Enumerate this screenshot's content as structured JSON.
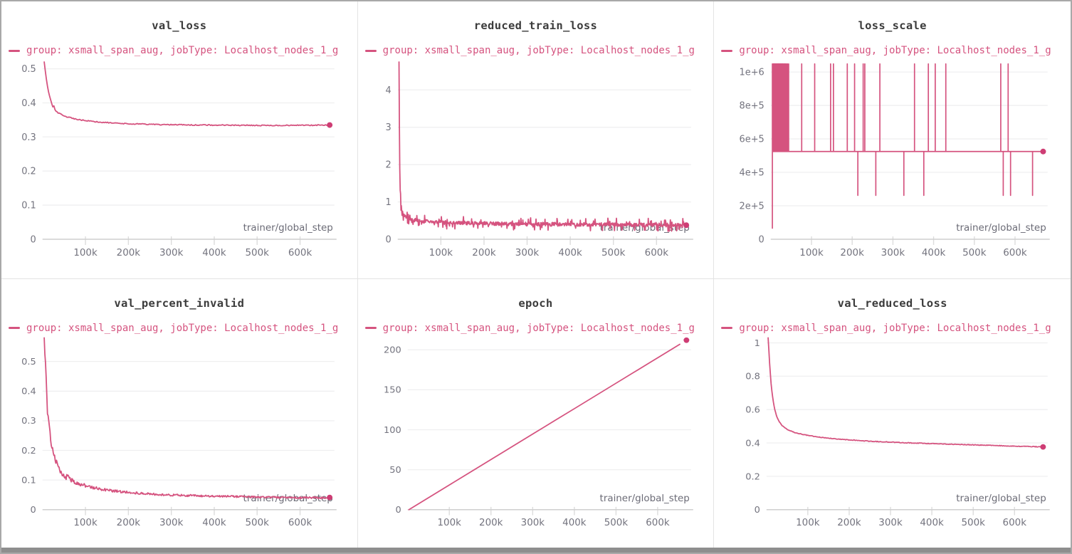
{
  "window": {
    "border_color": "#a9a9a9",
    "bottom_bar_color": "#8e8e8e",
    "panel_divider_color": "#e3e3e3",
    "background": "#ffffff"
  },
  "colors": {
    "accent": "#d5537f",
    "end_dot": "#ce3d74",
    "title_text": "#3b3b3b",
    "tick_text": "#73737e",
    "axis_line": "#cfcfcf",
    "tick_mark": "#dcdcdc",
    "grid_line": "#efeff0",
    "axis_label_text": "#6b6b76"
  },
  "legend": {
    "label": "group: xsmall_span_aug, jobType: Localhost_nodes_1_g"
  },
  "x_axis": {
    "label": "trainer/global_step",
    "range": [
      0,
      680000
    ],
    "ticks": [
      {
        "v": 100000,
        "label": "100k"
      },
      {
        "v": 200000,
        "label": "200k"
      },
      {
        "v": 300000,
        "label": "300k"
      },
      {
        "v": 400000,
        "label": "400k"
      },
      {
        "v": 500000,
        "label": "500k"
      },
      {
        "v": 600000,
        "label": "600k"
      }
    ]
  },
  "chart_data": [
    {
      "type": "line",
      "title": "val_loss",
      "ylabel": "",
      "xlabel": "trainer/global_step",
      "y_range": [
        0,
        0.52
      ],
      "y_ticks": [
        {
          "v": 0,
          "label": "0"
        },
        {
          "v": 0.1,
          "label": "0.1"
        },
        {
          "v": 0.2,
          "label": "0.2"
        },
        {
          "v": 0.3,
          "label": "0.3"
        },
        {
          "v": 0.4,
          "label": "0.4"
        },
        {
          "v": 0.5,
          "label": "0.5"
        }
      ],
      "noise": {
        "amp": 0.0015,
        "mode": "flat"
      },
      "anchors": [
        [
          4000,
          0.52
        ],
        [
          6000,
          0.5
        ],
        [
          9000,
          0.468
        ],
        [
          12000,
          0.445
        ],
        [
          15000,
          0.428
        ],
        [
          18000,
          0.413
        ],
        [
          21000,
          0.4
        ],
        [
          24000,
          0.388
        ],
        [
          26000,
          0.393
        ],
        [
          28000,
          0.383
        ],
        [
          31000,
          0.377
        ],
        [
          35000,
          0.372
        ],
        [
          40000,
          0.368
        ],
        [
          46000,
          0.364
        ],
        [
          53000,
          0.36
        ],
        [
          62000,
          0.357
        ],
        [
          72000,
          0.354
        ],
        [
          85000,
          0.351
        ],
        [
          100000,
          0.348
        ],
        [
          120000,
          0.345
        ],
        [
          140000,
          0.343
        ],
        [
          165000,
          0.341
        ],
        [
          195000,
          0.339
        ],
        [
          230000,
          0.3375
        ],
        [
          270000,
          0.3365
        ],
        [
          320000,
          0.3355
        ],
        [
          380000,
          0.335
        ],
        [
          440000,
          0.3345
        ],
        [
          500000,
          0.334
        ],
        [
          560000,
          0.334
        ],
        [
          620000,
          0.3345
        ],
        [
          669000,
          0.335
        ]
      ],
      "end_dot": [
        669000,
        0.335
      ]
    },
    {
      "type": "line",
      "title": "reduced_train_loss",
      "ylabel": "",
      "xlabel": "trainer/global_step",
      "y_range": [
        0,
        4.75
      ],
      "y_ticks": [
        {
          "v": 0,
          "label": "0"
        },
        {
          "v": 1,
          "label": "1"
        },
        {
          "v": 2,
          "label": "2"
        },
        {
          "v": 3,
          "label": "3"
        },
        {
          "v": 4,
          "label": "4"
        }
      ],
      "noise": {
        "amp": 0.05,
        "mode": "spiky"
      },
      "anchors": [
        [
          3000,
          4.75
        ],
        [
          3500,
          3.6
        ],
        [
          4000,
          2.8
        ],
        [
          4500,
          2.2
        ],
        [
          5000,
          1.75
        ],
        [
          5500,
          1.45
        ],
        [
          6000,
          1.22
        ],
        [
          7000,
          1.0
        ],
        [
          8000,
          0.88
        ],
        [
          9500,
          0.78
        ],
        [
          11000,
          0.72
        ],
        [
          13000,
          0.67
        ],
        [
          15000,
          0.64
        ],
        [
          18000,
          0.6
        ],
        [
          22000,
          0.57
        ],
        [
          27000,
          0.545
        ],
        [
          33000,
          0.525
        ],
        [
          40000,
          0.51
        ],
        [
          50000,
          0.495
        ],
        [
          62000,
          0.48
        ],
        [
          76000,
          0.468
        ],
        [
          92000,
          0.458
        ],
        [
          110000,
          0.449
        ],
        [
          130000,
          0.442
        ],
        [
          155000,
          0.435
        ],
        [
          185000,
          0.428
        ],
        [
          220000,
          0.421
        ],
        [
          260000,
          0.414
        ],
        [
          305000,
          0.408
        ],
        [
          355000,
          0.402
        ],
        [
          410000,
          0.396
        ],
        [
          470000,
          0.391
        ],
        [
          530000,
          0.386
        ],
        [
          590000,
          0.382
        ],
        [
          640000,
          0.378
        ],
        [
          669000,
          0.376
        ]
      ],
      "end_dot": [
        669000,
        0.376
      ]
    },
    {
      "type": "spike",
      "title": "loss_scale",
      "ylabel": "",
      "xlabel": "trainer/global_step",
      "y_range": [
        0,
        1060000
      ],
      "y_ticks": [
        {
          "v": 0,
          "label": "0"
        },
        {
          "v": 200000,
          "label": "2e+5"
        },
        {
          "v": 400000,
          "label": "4e+5"
        },
        {
          "v": 600000,
          "label": "6e+5"
        },
        {
          "v": 800000,
          "label": "8e+5"
        },
        {
          "v": 1000000,
          "label": "1e+6"
        }
      ],
      "baseline": 524288,
      "spike_top": 1048576,
      "spike_bottom": 262144,
      "start": [
        4000,
        65536
      ],
      "x_end": 669000,
      "up_spikes": [
        6000,
        7500,
        9000,
        10500,
        12000,
        13500,
        15000,
        16500,
        18000,
        19500,
        21000,
        22500,
        24000,
        25500,
        27000,
        28500,
        30000,
        32000,
        34000,
        36000,
        38500,
        41000,
        44000,
        76000,
        108000,
        147000,
        154000,
        188000,
        206000,
        227000,
        231000,
        268000,
        353000,
        387000,
        404000,
        430000,
        565000,
        583000
      ],
      "down_spikes": [
        214000,
        258000,
        327000,
        376000,
        571000,
        589000,
        643000
      ],
      "end_dot": [
        669000,
        524288
      ]
    },
    {
      "type": "line",
      "title": "val_percent_invalid",
      "ylabel": "",
      "xlabel": "trainer/global_step",
      "y_range": [
        0,
        0.58
      ],
      "y_ticks": [
        {
          "v": 0,
          "label": "0"
        },
        {
          "v": 0.1,
          "label": "0.1"
        },
        {
          "v": 0.2,
          "label": "0.2"
        },
        {
          "v": 0.3,
          "label": "0.3"
        },
        {
          "v": 0.4,
          "label": "0.4"
        },
        {
          "v": 0.5,
          "label": "0.5"
        }
      ],
      "noise": {
        "amp": 0.07,
        "mode": "scaled"
      },
      "anchors": [
        [
          4000,
          0.58
        ],
        [
          5000,
          0.54
        ],
        [
          6000,
          0.5
        ],
        [
          7000,
          0.465
        ],
        [
          8000,
          0.435
        ],
        [
          9000,
          0.41
        ],
        [
          10000,
          0.385
        ],
        [
          11000,
          0.355
        ],
        [
          12000,
          0.335
        ],
        [
          13000,
          0.318
        ],
        [
          14000,
          0.3
        ],
        [
          15000,
          0.29
        ],
        [
          16000,
          0.285
        ],
        [
          17000,
          0.27
        ],
        [
          18000,
          0.255
        ],
        [
          19000,
          0.245
        ],
        [
          20000,
          0.235
        ],
        [
          22000,
          0.22
        ],
        [
          24000,
          0.205
        ],
        [
          26000,
          0.19
        ],
        [
          28000,
          0.178
        ],
        [
          30000,
          0.165
        ],
        [
          33000,
          0.155
        ],
        [
          36000,
          0.148
        ],
        [
          39000,
          0.138
        ],
        [
          42000,
          0.13
        ],
        [
          46000,
          0.122
        ],
        [
          50000,
          0.115
        ],
        [
          55000,
          0.108
        ],
        [
          58000,
          0.118
        ],
        [
          62000,
          0.104
        ],
        [
          66000,
          0.1
        ],
        [
          70000,
          0.097
        ],
        [
          76000,
          0.092
        ],
        [
          82000,
          0.088
        ],
        [
          90000,
          0.085
        ],
        [
          98000,
          0.082
        ],
        [
          108000,
          0.078
        ],
        [
          120000,
          0.074
        ],
        [
          134000,
          0.07
        ],
        [
          150000,
          0.066
        ],
        [
          168000,
          0.063
        ],
        [
          188000,
          0.06
        ],
        [
          210000,
          0.057
        ],
        [
          235000,
          0.054
        ],
        [
          262000,
          0.052
        ],
        [
          292000,
          0.05
        ],
        [
          325000,
          0.048
        ],
        [
          360000,
          0.047
        ],
        [
          398000,
          0.046
        ],
        [
          438000,
          0.045
        ],
        [
          480000,
          0.043
        ],
        [
          524000,
          0.042
        ],
        [
          570000,
          0.041
        ],
        [
          615000,
          0.0405
        ],
        [
          655000,
          0.04
        ],
        [
          669000,
          0.041
        ]
      ],
      "end_dot": [
        669000,
        0.041
      ]
    },
    {
      "type": "line",
      "title": "epoch",
      "ylabel": "",
      "xlabel": "trainer/global_step",
      "y_range": [
        0,
        215
      ],
      "y_ticks": [
        {
          "v": 0,
          "label": "0"
        },
        {
          "v": 50,
          "label": "50"
        },
        {
          "v": 100,
          "label": "100"
        },
        {
          "v": 150,
          "label": "150"
        },
        {
          "v": 200,
          "label": "200"
        }
      ],
      "noise": {
        "amp": 0,
        "mode": "flat"
      },
      "anchors": [
        [
          3000,
          0
        ],
        [
          669000,
          212
        ]
      ],
      "end_dot": [
        669000,
        212
      ]
    },
    {
      "type": "line",
      "title": "val_reduced_loss",
      "ylabel": "",
      "xlabel": "trainer/global_step",
      "y_range": [
        0,
        1.03
      ],
      "y_ticks": [
        {
          "v": 0,
          "label": "0"
        },
        {
          "v": 0.2,
          "label": "0.2"
        },
        {
          "v": 0.4,
          "label": "0.4"
        },
        {
          "v": 0.6,
          "label": "0.6"
        },
        {
          "v": 0.8,
          "label": "0.8"
        },
        {
          "v": 1,
          "label": "1"
        }
      ],
      "noise": {
        "amp": 0.002,
        "mode": "flat"
      },
      "anchors": [
        [
          4000,
          1.03
        ],
        [
          5000,
          0.99
        ],
        [
          6000,
          0.945
        ],
        [
          7000,
          0.9
        ],
        [
          8000,
          0.86
        ],
        [
          9000,
          0.825
        ],
        [
          10000,
          0.79
        ],
        [
          11000,
          0.76
        ],
        [
          12000,
          0.735
        ],
        [
          14000,
          0.69
        ],
        [
          16000,
          0.655
        ],
        [
          18000,
          0.625
        ],
        [
          20000,
          0.6
        ],
        [
          23000,
          0.573
        ],
        [
          26000,
          0.552
        ],
        [
          29000,
          0.536
        ],
        [
          33000,
          0.519
        ],
        [
          37000,
          0.506
        ],
        [
          42000,
          0.494
        ],
        [
          48000,
          0.484
        ],
        [
          55000,
          0.475
        ],
        [
          63000,
          0.467
        ],
        [
          72000,
          0.46
        ],
        [
          82000,
          0.454
        ],
        [
          94000,
          0.448
        ],
        [
          108000,
          0.442
        ],
        [
          124000,
          0.436
        ],
        [
          142000,
          0.431
        ],
        [
          162000,
          0.426
        ],
        [
          185000,
          0.421
        ],
        [
          210000,
          0.417
        ],
        [
          238000,
          0.412
        ],
        [
          268000,
          0.408
        ],
        [
          300000,
          0.405
        ],
        [
          335000,
          0.401
        ],
        [
          372000,
          0.398
        ],
        [
          410000,
          0.395
        ],
        [
          450000,
          0.392
        ],
        [
          490000,
          0.389
        ],
        [
          530000,
          0.386
        ],
        [
          570000,
          0.383
        ],
        [
          610000,
          0.38
        ],
        [
          645000,
          0.378
        ],
        [
          669000,
          0.376
        ]
      ],
      "end_dot": [
        669000,
        0.376
      ]
    }
  ]
}
